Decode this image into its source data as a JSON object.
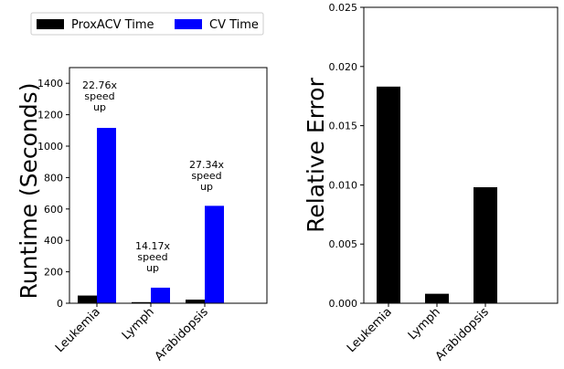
{
  "chart_data": [
    {
      "type": "bar",
      "ylabel": "Runtime (Seconds)",
      "ylim": [
        0,
        1500
      ],
      "yticks": [
        0,
        200,
        400,
        600,
        800,
        1000,
        1200,
        1400
      ],
      "categories": [
        "Leukemia",
        "Lymph",
        "Arabidopsis"
      ],
      "series": [
        {
          "name": "ProxACV Time",
          "color": "#000000",
          "values": [
            49,
            7,
            23
          ]
        },
        {
          "name": "CV Time",
          "color": "#0000ff",
          "values": [
            1116,
            99,
            620
          ]
        }
      ],
      "annotations": [
        {
          "category": "Leukemia",
          "lines": [
            "22.76x",
            "speed",
            "up"
          ]
        },
        {
          "category": "Lymph",
          "lines": [
            "14.17x",
            "speed",
            "up"
          ]
        },
        {
          "category": "Arabidopsis",
          "lines": [
            "27.34x",
            "speed",
            "up"
          ]
        }
      ],
      "legend": "top"
    },
    {
      "type": "bar",
      "ylabel": "Relative Error",
      "ylim": [
        0,
        0.025
      ],
      "yticks": [
        "0.000",
        "0.005",
        "0.010",
        "0.015",
        "0.020",
        "0.025"
      ],
      "categories": [
        "Leukemia",
        "Lymph",
        "Arabidopsis"
      ],
      "series": [
        {
          "color": "#000000",
          "values": [
            0.0183,
            0.0008,
            0.0098
          ]
        }
      ]
    }
  ]
}
